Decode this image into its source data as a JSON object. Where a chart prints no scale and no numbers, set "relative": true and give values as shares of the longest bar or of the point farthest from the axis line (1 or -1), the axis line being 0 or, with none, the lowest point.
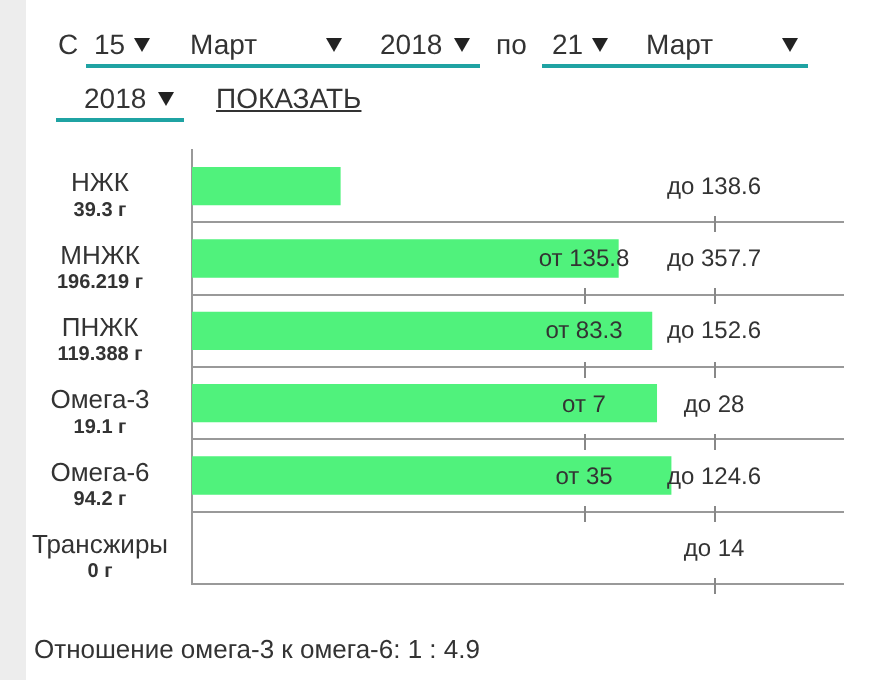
{
  "chart_data": {
    "type": "bar",
    "orientation": "horizontal",
    "relative": true,
    "categories": [
      "НЖК\n39.3 г",
      "МНЖК\n196.219 г",
      "ПНЖК\n119.388 г",
      "Омега-3\n19.1 г",
      "Омега-6\n94.2 г",
      "Трансжиры\n0 г"
    ],
    "values": [
      0.31,
      0.89,
      0.96,
      0.97,
      1,
      0
    ],
    "color": "#50f27c",
    "grid": "y",
    "annotations": [
      "С",
      "15",
      "Март",
      "2018",
      "по",
      "21",
      "Март",
      "2018",
      "ПОКАЗАТЬ",
      "Отношение омега-3 к омега-6: 1 : 4.9",
      "до 138.6",
      "от 135.8",
      "до 357.7",
      "от 83.3",
      "до 152.6",
      "от 7",
      "до 28",
      "от 35",
      "до 124.6",
      "до 14"
    ]
  }
}
